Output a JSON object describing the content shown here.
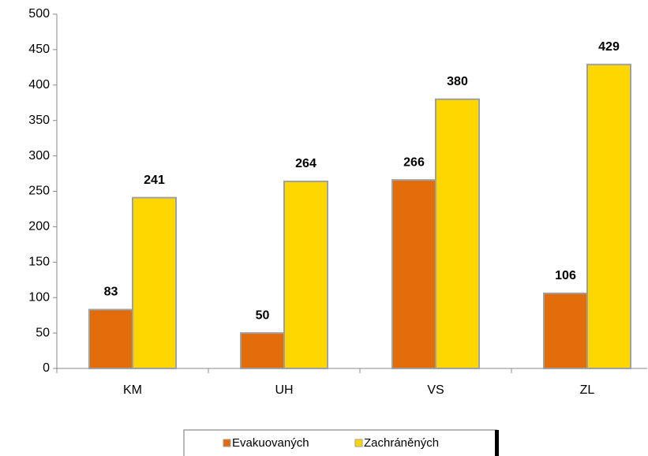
{
  "chart_data": {
    "type": "bar",
    "categories": [
      "KM",
      "UH",
      "VS",
      "ZL"
    ],
    "series": [
      {
        "name": "Evakuovaných",
        "color": "#e36c0a",
        "values": [
          83,
          50,
          266,
          106
        ]
      },
      {
        "name": "Zachráněných",
        "color": "#ffd700",
        "values": [
          241,
          264,
          380,
          429
        ]
      }
    ],
    "ylim": [
      0,
      500
    ],
    "yticks": [
      0,
      50,
      100,
      150,
      200,
      250,
      300,
      350,
      400,
      450,
      500
    ],
    "legend": "bottom"
  }
}
